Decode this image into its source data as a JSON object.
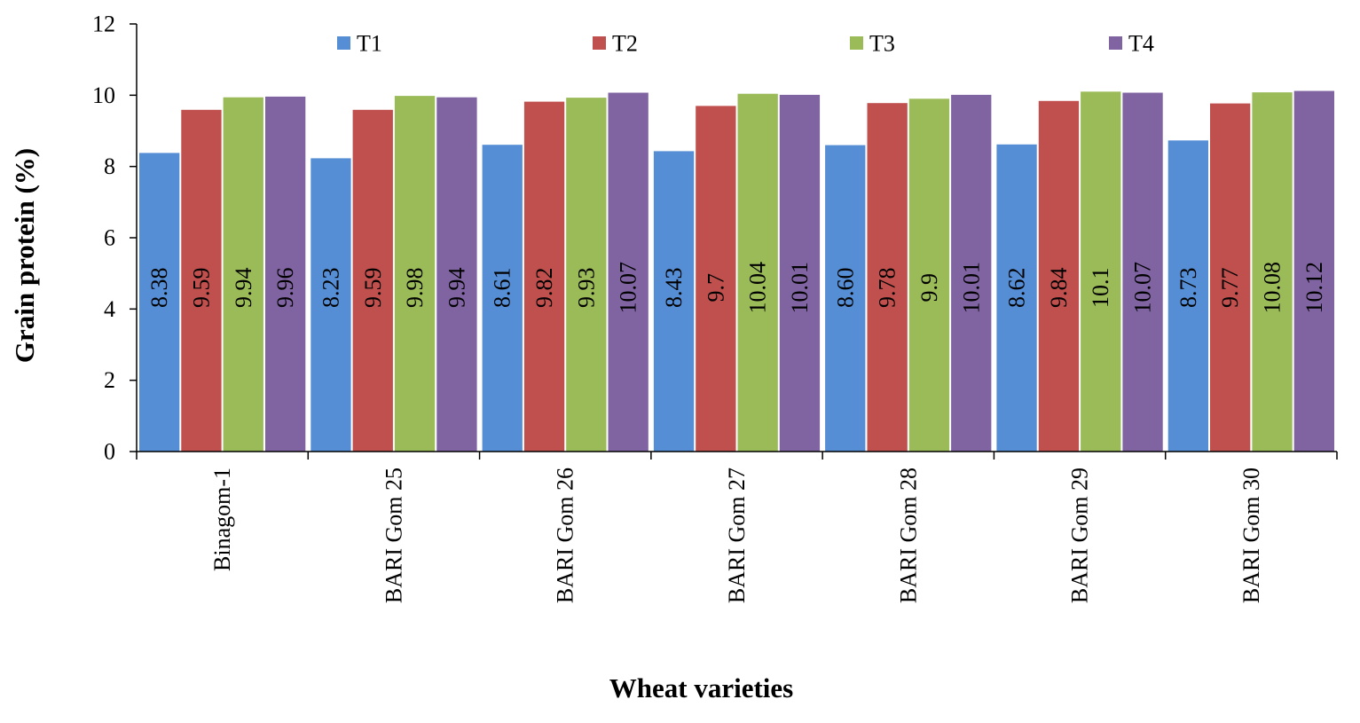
{
  "chart_data": {
    "type": "bar",
    "title": "",
    "xlabel": "Wheat varieties",
    "ylabel": "Grain protein (%)",
    "ylim": [
      0,
      12
    ],
    "yticks": [
      "0",
      "2",
      "4",
      "6",
      "8",
      "10",
      "12"
    ],
    "grid": false,
    "legend_position": "top",
    "categories": [
      "Binagom-1",
      "BARI Gom 25",
      "BARI Gom 26",
      "BARI Gom 27",
      "BARI Gom 28",
      "BARI Gom 29",
      "BARI Gom 30"
    ],
    "series": [
      {
        "name": "T1",
        "color": "#558ED5",
        "values": [
          8.38,
          8.23,
          8.61,
          8.43,
          8.6,
          8.62,
          8.73
        ],
        "labels": [
          "8.38",
          "8.23",
          "8.61",
          "8.43",
          "8.60",
          "8.62",
          "8.73"
        ]
      },
      {
        "name": "T2",
        "color": "#C0504D",
        "values": [
          9.59,
          9.59,
          9.82,
          9.7,
          9.78,
          9.84,
          9.77
        ],
        "labels": [
          "9.59",
          "9.59",
          "9.82",
          "9.7",
          "9.78",
          "9.84",
          "9.77"
        ]
      },
      {
        "name": "T3",
        "color": "#9BBB59",
        "values": [
          9.94,
          9.98,
          9.93,
          10.04,
          9.9,
          10.1,
          10.08
        ],
        "labels": [
          "9.94",
          "9.98",
          "9.93",
          "10.04",
          "9.9",
          "10.1",
          "10.08"
        ]
      },
      {
        "name": "T4",
        "color": "#8064A2",
        "values": [
          9.96,
          9.94,
          10.07,
          10.01,
          10.01,
          10.07,
          10.12
        ],
        "labels": [
          "9.96",
          "9.94",
          "10.07",
          "10.01",
          "10.01",
          "10.07",
          "10.12"
        ]
      }
    ]
  }
}
